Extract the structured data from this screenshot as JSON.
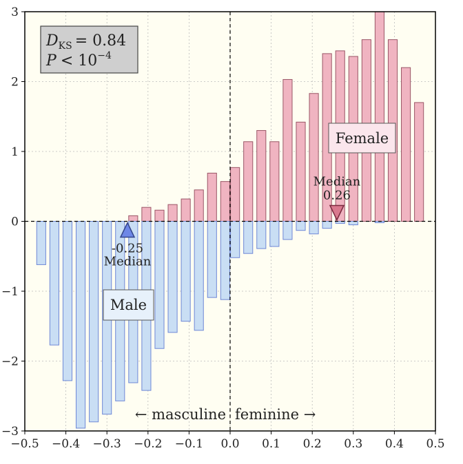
{
  "chart_data": {
    "type": "bar",
    "xlim": [
      -0.5,
      0.5
    ],
    "ylim": [
      -3,
      3
    ],
    "x_ticks": [
      -0.5,
      -0.4,
      -0.3,
      -0.2,
      -0.1,
      0.0,
      0.1,
      0.2,
      0.3,
      0.4,
      0.5
    ],
    "x_tick_labels": [
      "−0.5",
      "−0.4",
      "−0.3",
      "−0.2",
      "−0.1",
      "0.0",
      "0.1",
      "0.2",
      "0.3",
      "0.4",
      "0.5"
    ],
    "y_ticks": [
      -3,
      -2,
      -1,
      0,
      1,
      2,
      3
    ],
    "y_tick_labels": [
      "−3",
      "−2",
      "−1",
      "0",
      "1",
      "2",
      "3"
    ],
    "grid": true,
    "bin_centers": [
      -0.46,
      -0.428,
      -0.396,
      -0.364,
      -0.332,
      -0.3,
      -0.268,
      -0.236,
      -0.204,
      -0.172,
      -0.14,
      -0.108,
      -0.076,
      -0.044,
      -0.012,
      0.012,
      0.044,
      0.076,
      0.108,
      0.14,
      0.172,
      0.204,
      0.236,
      0.268,
      0.3,
      0.332,
      0.364,
      0.396,
      0.428,
      0.46
    ],
    "bar_width": 0.022,
    "series": [
      {
        "name": "Female",
        "color": "#f0b4c1",
        "edge": "#9a5566",
        "values": [
          0,
          0,
          0,
          0,
          0,
          0,
          0,
          0.08,
          0.2,
          0.16,
          0.24,
          0.32,
          0.45,
          0.69,
          0.57,
          0.77,
          1.14,
          1.3,
          1.14,
          2.03,
          1.42,
          1.83,
          2.4,
          2.44,
          2.36,
          2.6,
          3.0,
          2.6,
          2.2,
          1.7
        ]
      },
      {
        "name": "Male",
        "color": "#c9def4",
        "edge": "#6e87d6",
        "values": [
          -0.62,
          -1.77,
          -2.28,
          -2.96,
          -2.87,
          -2.76,
          -2.57,
          -2.31,
          -2.42,
          -1.82,
          -1.59,
          -1.43,
          -1.56,
          -1.09,
          -1.12,
          -0.52,
          -0.46,
          -0.39,
          -0.36,
          -0.26,
          -0.13,
          -0.18,
          -0.1,
          -0.03,
          -0.05,
          0,
          -0.02,
          0,
          0,
          0
        ]
      }
    ],
    "medians": [
      {
        "group": "Male",
        "value": -0.25,
        "value_label": "-0.25",
        "label": "Median",
        "marker": "triangle-up",
        "color": "#6e87e6",
        "edge": "#34468a"
      },
      {
        "group": "Female",
        "value": 0.26,
        "value_label": "0.26",
        "label": "Median",
        "marker": "triangle-down",
        "color": "#d9798e",
        "edge": "#7a2a3e"
      }
    ],
    "legend_labels": {
      "female": "Female",
      "male": "Male"
    },
    "stats": {
      "dks_symbol": "D",
      "dks_subscript": "KS",
      "dks_value": "= 0.84",
      "p_symbol": "P",
      "p_text": "< 10",
      "p_exponent": "−4"
    },
    "annotation": {
      "left": "← masculine",
      "right": "feminine →"
    }
  }
}
